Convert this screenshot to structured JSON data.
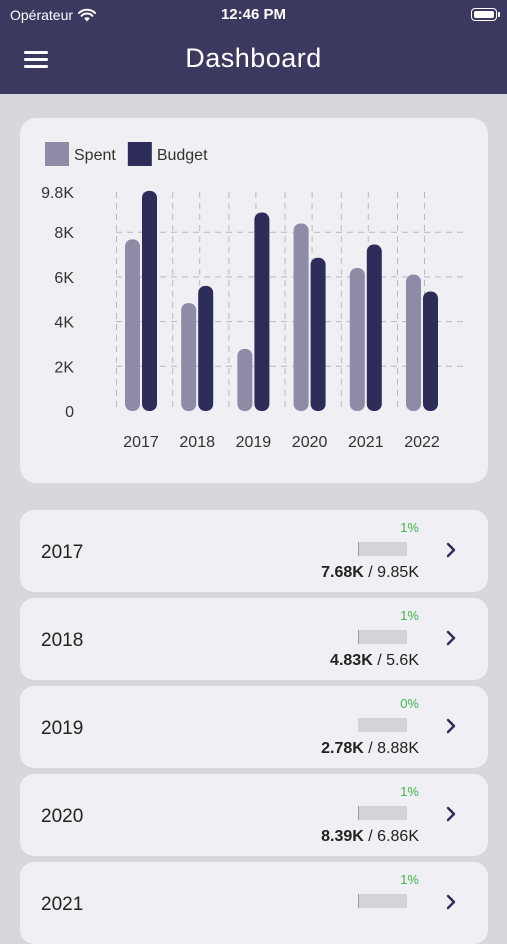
{
  "status": {
    "carrier": "Opérateur",
    "time": "12:46 PM"
  },
  "header": {
    "title": "Dashboard"
  },
  "chart_data": {
    "type": "bar",
    "categories": [
      "2017",
      "2018",
      "2019",
      "2020",
      "2021",
      "2022"
    ],
    "series": [
      {
        "name": "Spent",
        "color": "#8d8ba6",
        "values": [
          7.68,
          4.83,
          2.78,
          8.39,
          6.4,
          6.1
        ]
      },
      {
        "name": "Budget",
        "color": "#2e2c58",
        "values": [
          9.85,
          5.6,
          8.88,
          6.86,
          7.45,
          5.35
        ]
      }
    ],
    "ylim": [
      0,
      9.8
    ],
    "yticks": [
      "0",
      "2K",
      "4K",
      "6K",
      "8K",
      "9.8K"
    ],
    "legend": "top-left",
    "grid": true
  },
  "rows": [
    {
      "year": "2017",
      "percent": "1%",
      "spent": "7.68K",
      "budget": "9.85K",
      "fill": 0.01
    },
    {
      "year": "2018",
      "percent": "1%",
      "spent": "4.83K",
      "budget": "5.6K",
      "fill": 0.01
    },
    {
      "year": "2019",
      "percent": "0%",
      "spent": "2.78K",
      "budget": "8.88K",
      "fill": 0.0
    },
    {
      "year": "2020",
      "percent": "1%",
      "spent": "8.39K",
      "budget": "6.86K",
      "fill": 0.01
    },
    {
      "year": "2021",
      "percent": "1%",
      "spent": "",
      "budget": "",
      "fill": 0.01
    }
  ]
}
